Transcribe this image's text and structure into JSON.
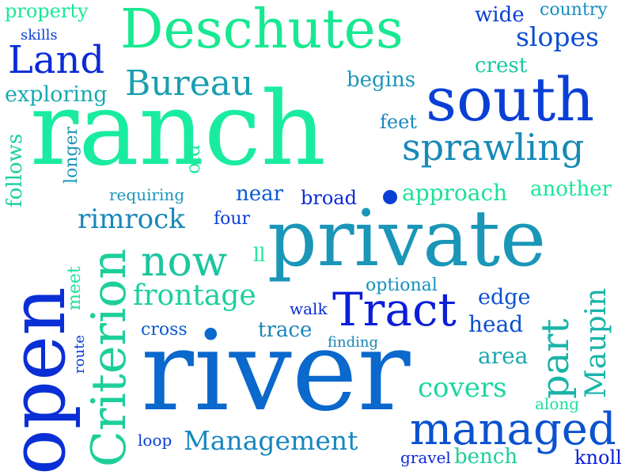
{
  "words": [
    {
      "text": "private",
      "color": "#1a96b8"
    },
    {
      "text": "ranch",
      "color": "#19eca0"
    },
    {
      "text": "river",
      "color": "#0b68cc"
    },
    {
      "text": "open",
      "color": "#0a2fd6"
    },
    {
      "text": "south",
      "color": "#0a3fd6"
    },
    {
      "text": "Deschutes",
      "color": "#18e891"
    },
    {
      "text": "Criterion",
      "color": "#1ccf9a"
    },
    {
      "text": "managed",
      "color": "#0a52d0"
    },
    {
      "text": "Tract",
      "color": "#0a1ed8"
    },
    {
      "text": "sprawling",
      "color": "#168ab8"
    },
    {
      "text": "Bureau",
      "color": "#1a9eb0"
    },
    {
      "text": "Land",
      "color": "#0a2ad8"
    },
    {
      "text": "Management",
      "color": "#1786c0"
    },
    {
      "text": "part",
      "color": "#1bb4a8"
    },
    {
      "text": "now",
      "color": "#1bc6a0"
    },
    {
      "text": "frontage",
      "color": "#1ccfa0"
    },
    {
      "text": "slopes",
      "color": "#0a4ed2"
    },
    {
      "text": "Maupin",
      "color": "#18b4a8"
    },
    {
      "text": "covers",
      "color": "#1bd6a0"
    },
    {
      "text": "rimrock",
      "color": "#1a86b8"
    },
    {
      "text": "approach",
      "color": "#1ce097"
    },
    {
      "text": "another",
      "color": "#19e89a"
    },
    {
      "text": "exploring",
      "color": "#1aa8b0"
    },
    {
      "text": "follows",
      "color": "#1ccfa0"
    },
    {
      "text": "property",
      "color": "#19e898"
    },
    {
      "text": "begins",
      "color": "#1a96b8"
    },
    {
      "text": "crest",
      "color": "#19c8a0"
    },
    {
      "text": "wide",
      "color": "#0a3ed6"
    },
    {
      "text": "country",
      "color": "#1590c0"
    },
    {
      "text": "skills",
      "color": "#0a3ed6"
    },
    {
      "text": "feet",
      "color": "#1888c0"
    },
    {
      "text": "old",
      "color": "#1ae89a"
    },
    {
      "text": "longer",
      "color": "#1a96b8"
    },
    {
      "text": "requiring",
      "color": "#1a96b8"
    },
    {
      "text": "near",
      "color": "#0a5ad0"
    },
    {
      "text": "broad",
      "color": "#0a2ad8"
    },
    {
      "text": "four",
      "color": "#0a3ed6"
    },
    {
      "text": "ll",
      "color": "#19e898"
    },
    {
      "text": "optional",
      "color": "#1590c0"
    },
    {
      "text": "meet",
      "color": "#1ce09a"
    },
    {
      "text": "edge",
      "color": "#0a52d0"
    },
    {
      "text": "walk",
      "color": "#0a2ad8"
    },
    {
      "text": "head",
      "color": "#0a4ed2"
    },
    {
      "text": "cross",
      "color": "#0a5ad0"
    },
    {
      "text": "trace",
      "color": "#1a86b8"
    },
    {
      "text": "finding",
      "color": "#1a86b8"
    },
    {
      "text": "route",
      "color": "#0a3ed6"
    },
    {
      "text": "area",
      "color": "#1aa8b0"
    },
    {
      "text": "along",
      "color": "#1ce09a"
    },
    {
      "text": "loop",
      "color": "#0a3ed6"
    },
    {
      "text": "gravel",
      "color": "#0a2ad8"
    },
    {
      "text": "bench",
      "color": "#1ccf9a"
    },
    {
      "text": "knoll",
      "color": "#0a1ed8"
    }
  ],
  "accent_dot_color": "#0a3fd6"
}
